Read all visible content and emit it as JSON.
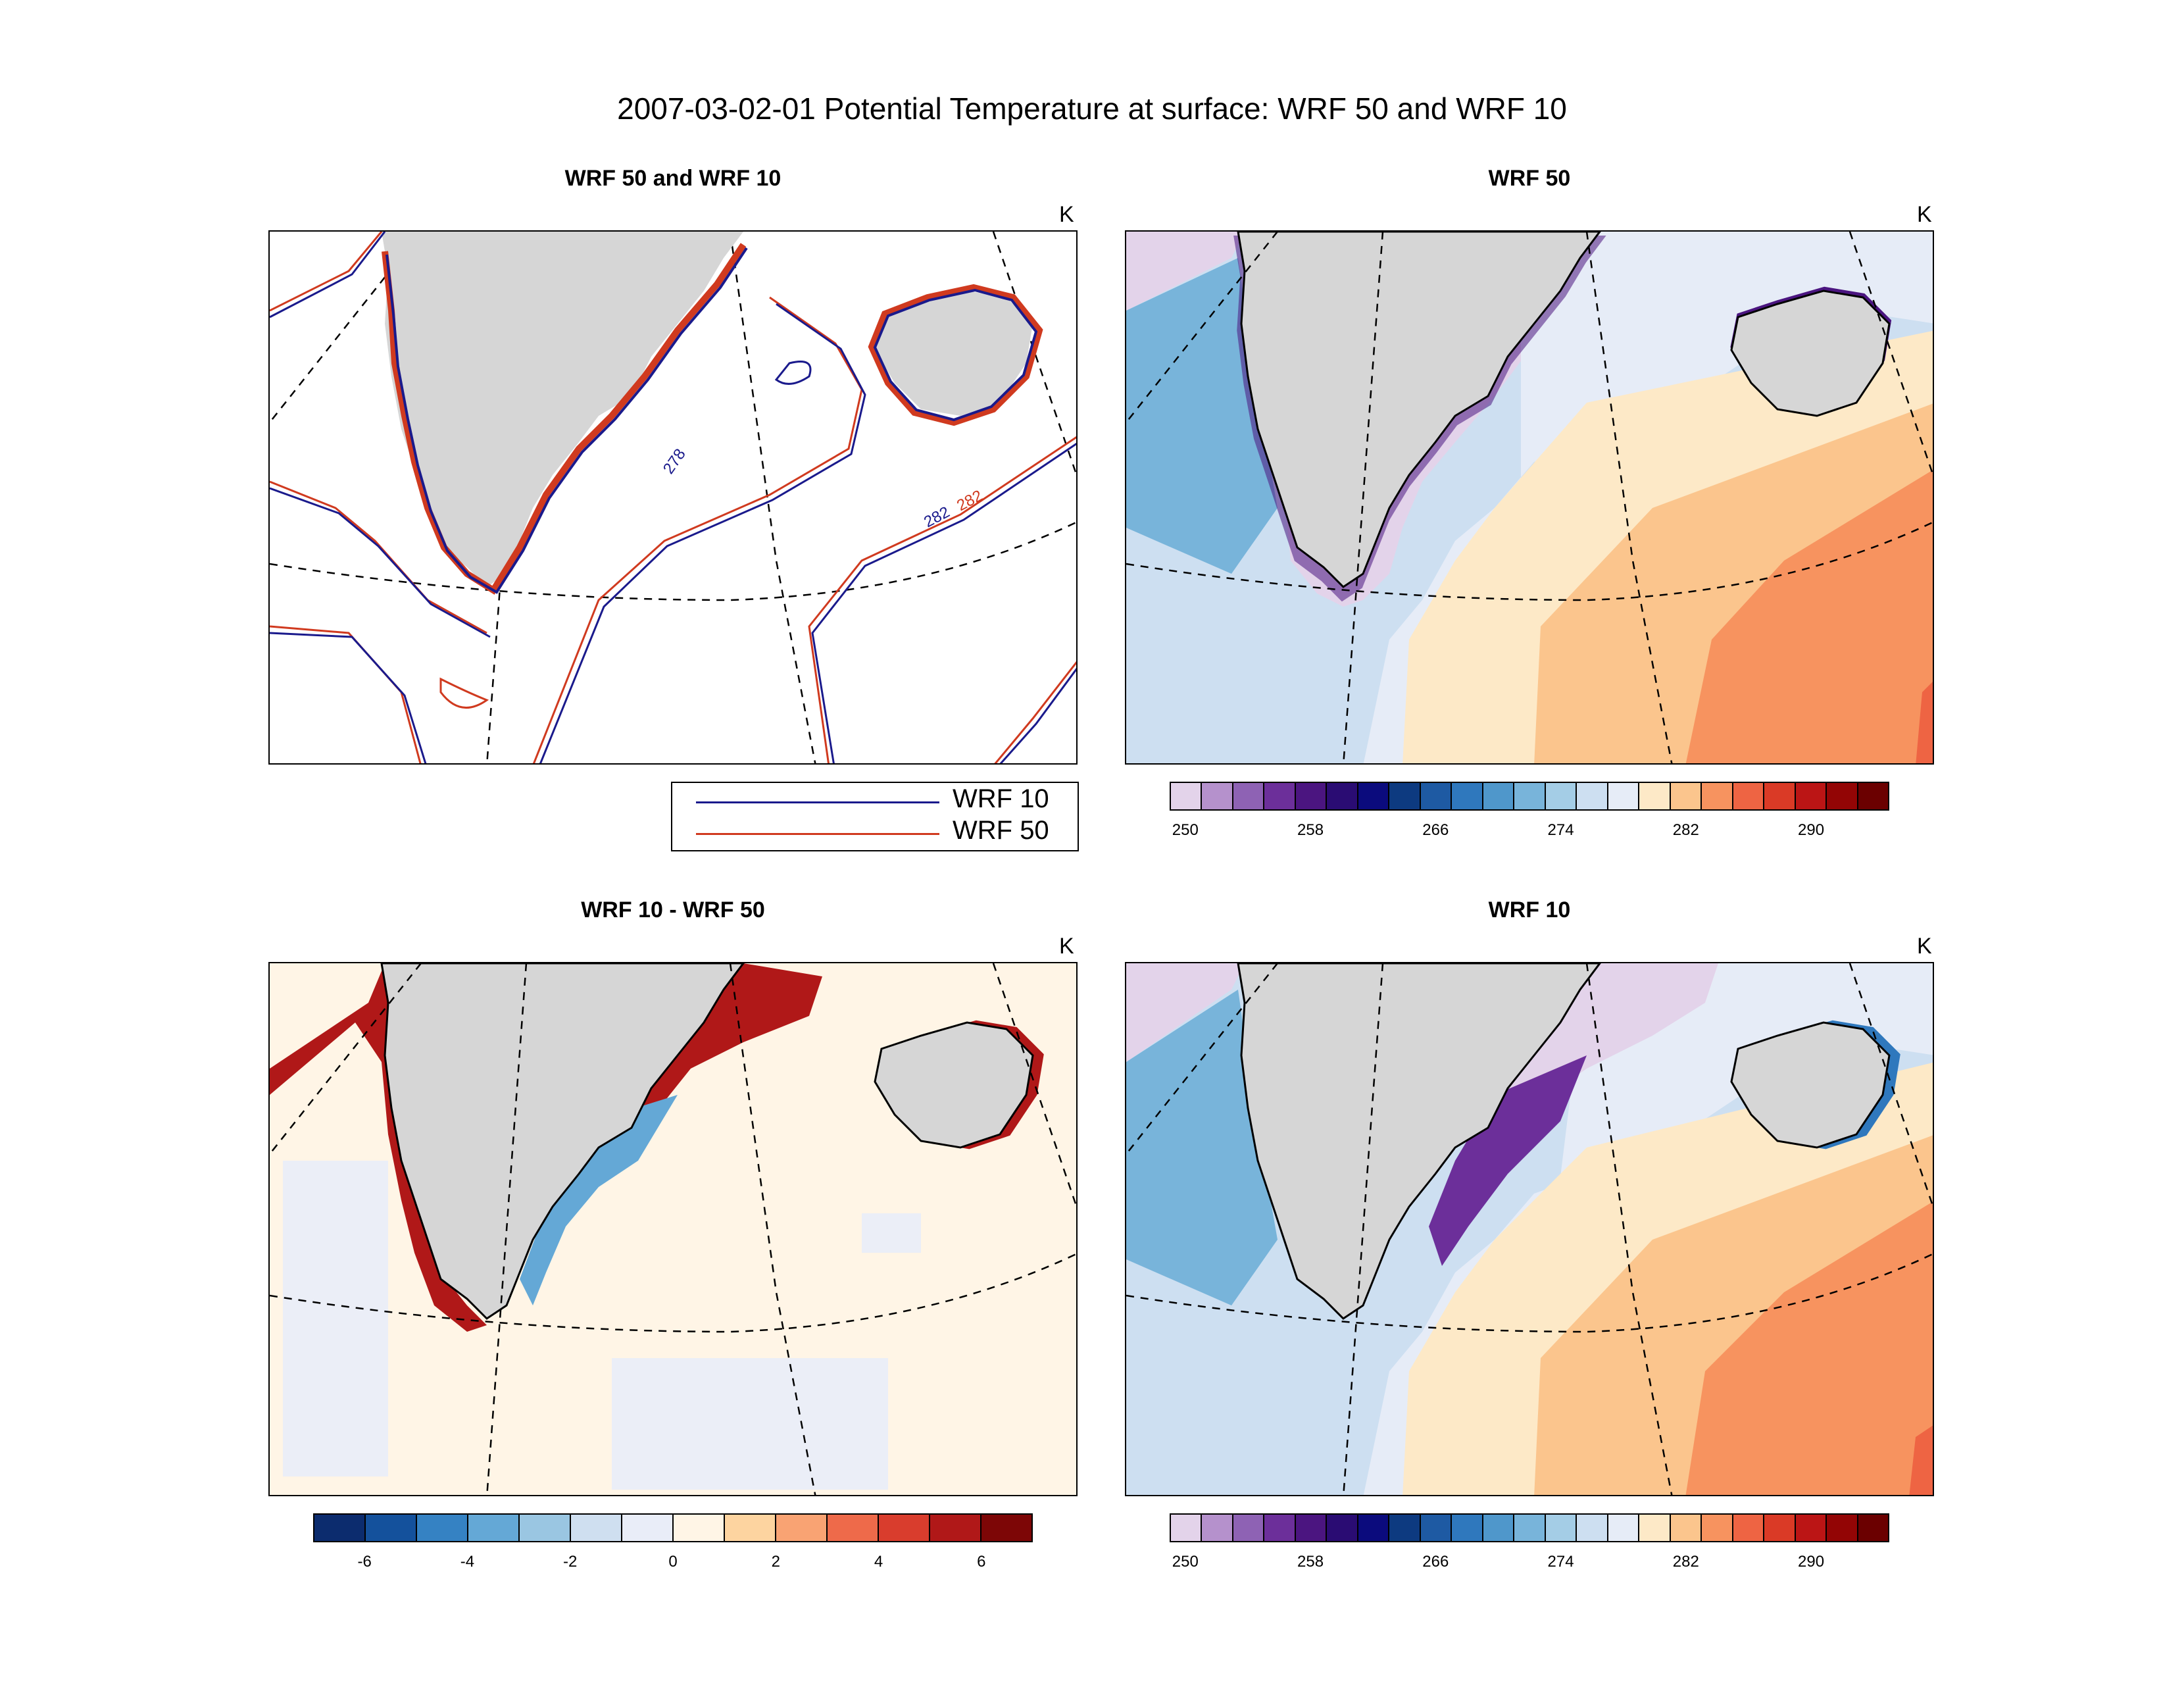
{
  "figure": {
    "title": "2007-03-02-01 Potential Temperature at surface: WRF 50 and WRF 10"
  },
  "panels": [
    {
      "id": "overlay",
      "title": "WRF 50 and WRF 10",
      "unit": "K",
      "contour_labels": [
        "278",
        "282",
        "282"
      ]
    },
    {
      "id": "wrf50",
      "title": "WRF 50",
      "unit": "K"
    },
    {
      "id": "diff",
      "title": "WRF 10 - WRF 50",
      "unit": "K"
    },
    {
      "id": "wrf10",
      "title": "WRF 10",
      "unit": "K"
    }
  ],
  "legend": {
    "items": [
      {
        "label": "WRF 10",
        "color": "#1a1a8c"
      },
      {
        "label": "WRF 50",
        "color": "#d03a1f"
      }
    ]
  },
  "colorbars": {
    "temperature": {
      "colors": [
        "#e3d3ea",
        "#b591cc",
        "#8e62b4",
        "#6c2f9a",
        "#4b1580",
        "#2a0c73",
        "#0b0b7d",
        "#0d3a80",
        "#1e5aa3",
        "#2f78bd",
        "#4f97cb",
        "#78b4da",
        "#a4cde6",
        "#cddff1",
        "#e6ecf7",
        "#fde9c7",
        "#fbc58d",
        "#f7935f",
        "#ee6443",
        "#da3a26",
        "#bb1515",
        "#930505",
        "#6b0000"
      ],
      "tick_labels": [
        "250",
        "258",
        "266",
        "274",
        "282",
        "290"
      ]
    },
    "difference": {
      "colors": [
        "#0c2c6e",
        "#14519c",
        "#3582c3",
        "#64a8d6",
        "#9ac6e2",
        "#cfdff0",
        "#e9edf8",
        "#fff5e6",
        "#fdd4a0",
        "#f9a373",
        "#ee6a4a",
        "#d93d2d",
        "#b01818",
        "#7d0606"
      ],
      "tick_labels": [
        "-6",
        "-4",
        "-2",
        "0",
        "2",
        "4",
        "6"
      ]
    }
  }
}
